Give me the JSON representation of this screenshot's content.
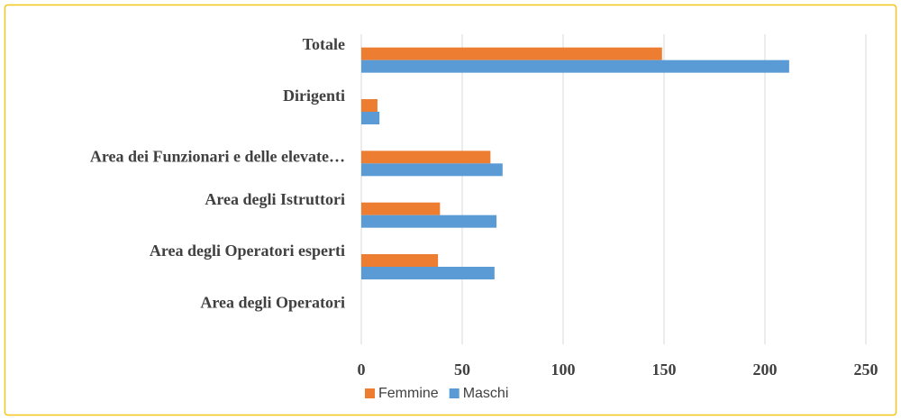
{
  "chart_data": {
    "type": "hbar",
    "categories": [
      "Totale",
      "Dirigenti",
      "Area dei Funzionari e delle elevate…",
      "Area degli Istruttori",
      "Area degli Operatori esperti",
      "Area degli Operatori"
    ],
    "series": [
      {
        "name": "Femmine",
        "color": "#ed7d31",
        "values": [
          149,
          8,
          64,
          39,
          38,
          0
        ]
      },
      {
        "name": "Maschi",
        "color": "#5b9bd5",
        "values": [
          212,
          9,
          70,
          67,
          66,
          0
        ]
      }
    ],
    "xlim": [
      0,
      250
    ],
    "xticks": [
      0,
      50,
      100,
      150,
      200,
      250
    ],
    "grid": true,
    "legend": "bottom"
  }
}
